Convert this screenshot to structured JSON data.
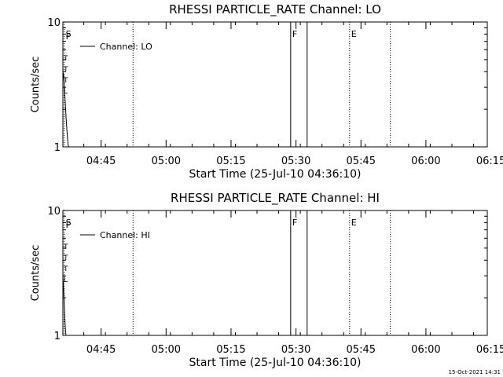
{
  "footer": {
    "date": "15-Oct-2021 14:31"
  },
  "chart_data": [
    {
      "type": "line",
      "title": "RHESSI PARTICLE_RATE Channel: LO",
      "xlabel": "Start Time (25-Jul-10 04:36:10)",
      "ylabel": "Counts/sec",
      "y_scale": "log",
      "ylim": [
        1,
        10
      ],
      "y_ticks": [
        {
          "v": 1,
          "label": "1"
        },
        {
          "v": 10,
          "label": "10"
        }
      ],
      "x_range_min": [
        0,
        98
      ],
      "x_ticks": [
        {
          "v": 8.83,
          "label": "04:45"
        },
        {
          "v": 23.83,
          "label": "05:00"
        },
        {
          "v": 38.83,
          "label": "05:15"
        },
        {
          "v": 53.83,
          "label": "05:30"
        },
        {
          "v": 68.83,
          "label": "05:45"
        },
        {
          "v": 83.83,
          "label": "06:00"
        },
        {
          "v": 98.83,
          "label": "06:15"
        }
      ],
      "legend": "Channel: LO",
      "series": [
        {
          "name": "Channel: LO",
          "x": [
            0.0,
            0.15,
            0.3,
            0.45,
            0.6,
            0.75,
            0.9,
            1.05,
            1.2,
            1.35
          ],
          "y": [
            4.0,
            3.8,
            3.2,
            2.6,
            2.1,
            1.7,
            1.4,
            1.2,
            1.05,
            1.0
          ]
        }
      ],
      "markers": [
        {
          "v": 0.3,
          "style": "dotted",
          "label": "S"
        },
        {
          "v": 0.3,
          "style": "none",
          "label": "F"
        },
        {
          "v": 16.2,
          "style": "dotted",
          "label": ""
        },
        {
          "v": 52.6,
          "style": "solid",
          "label": "F"
        },
        {
          "v": 56.4,
          "style": "solid",
          "label": ""
        },
        {
          "v": 66.2,
          "style": "dotted",
          "label": "E"
        },
        {
          "v": 75.6,
          "style": "dotted",
          "label": ""
        }
      ],
      "side_letters": [
        "T",
        "T",
        "T",
        "L"
      ]
    },
    {
      "type": "line",
      "title": "RHESSI PARTICLE_RATE Channel: HI",
      "xlabel": "Start Time (25-Jul-10 04:36:10)",
      "ylabel": "Counts/sec",
      "y_scale": "log",
      "ylim": [
        1,
        10
      ],
      "y_ticks": [
        {
          "v": 1,
          "label": "1"
        },
        {
          "v": 10,
          "label": "10"
        }
      ],
      "x_range_min": [
        0,
        98
      ],
      "x_ticks": [
        {
          "v": 8.83,
          "label": "04:45"
        },
        {
          "v": 23.83,
          "label": "05:00"
        },
        {
          "v": 38.83,
          "label": "05:15"
        },
        {
          "v": 53.83,
          "label": "05:30"
        },
        {
          "v": 68.83,
          "label": "05:45"
        },
        {
          "v": 83.83,
          "label": "06:00"
        },
        {
          "v": 98.83,
          "label": "06:15"
        }
      ],
      "legend": "Channel: HI",
      "series": [
        {
          "name": "Channel: HI",
          "x": [
            0.0,
            0.1,
            0.2,
            0.3,
            0.4,
            0.5,
            0.6,
            0.7
          ],
          "y": [
            3.0,
            2.6,
            2.2,
            1.8,
            1.5,
            1.25,
            1.1,
            1.0
          ]
        }
      ],
      "markers": [
        {
          "v": 0.3,
          "style": "dotted",
          "label": "S"
        },
        {
          "v": 0.3,
          "style": "none",
          "label": "F"
        },
        {
          "v": 16.2,
          "style": "dotted",
          "label": ""
        },
        {
          "v": 52.6,
          "style": "solid",
          "label": "F"
        },
        {
          "v": 56.4,
          "style": "solid",
          "label": ""
        },
        {
          "v": 66.2,
          "style": "dotted",
          "label": "E"
        },
        {
          "v": 75.6,
          "style": "dotted",
          "label": ""
        }
      ],
      "side_letters": [
        "T",
        "T",
        "T",
        "L"
      ]
    }
  ]
}
